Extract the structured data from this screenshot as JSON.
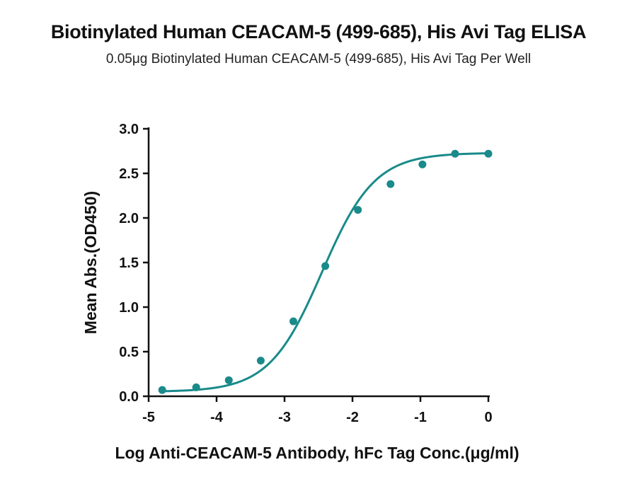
{
  "chart_data": {
    "type": "scatter",
    "title": "Biotinylated Human CEACAM-5 (499-685), His Avi Tag ELISA",
    "subtitle": "0.05μg Biotinylated Human CEACAM-5 (499-685), His Avi Tag Per Well",
    "xlabel": "Log Anti-CEACAM-5 Antibody, hFc Tag Conc.(μg/ml)",
    "ylabel": "Mean Abs.(OD450)",
    "xlim": [
      -5,
      0
    ],
    "ylim": [
      0,
      3.0
    ],
    "xticks": [
      "-5",
      "-4",
      "-3",
      "-2",
      "-1",
      "0"
    ],
    "yticks": [
      "0.0",
      "0.5",
      "1.0",
      "1.5",
      "2.0",
      "2.5",
      "3.0"
    ],
    "grid": false,
    "legend": "none",
    "series": [
      {
        "color": "#1a8a8a",
        "x": [
          -4.8,
          -4.3,
          -3.82,
          -3.35,
          -2.87,
          -2.4,
          -1.92,
          -1.44,
          -0.97,
          -0.49,
          0.0
        ],
        "y": [
          0.07,
          0.1,
          0.18,
          0.4,
          0.84,
          1.46,
          2.09,
          2.38,
          2.6,
          2.72,
          2.72
        ],
        "fit": "4PL",
        "fit_params": {
          "bottom": 0.05,
          "top": 2.73,
          "logEC50": -2.45,
          "hill": 1.12
        }
      }
    ]
  }
}
